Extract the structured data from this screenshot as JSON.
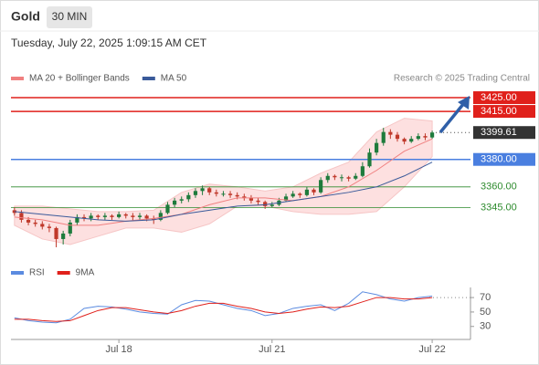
{
  "header": {
    "instrument": "Gold",
    "timeframe": "30 MIN",
    "timestamp": "Tuesday, July 22, 2025 1:09:15 AM CET",
    "credit": "Research © 2025 Trading Central"
  },
  "chart_data": [
    {
      "type": "candlestick",
      "xlim": [
        -0.5,
        65.5
      ],
      "ylim": [
        3310,
        3433
      ],
      "up_color": "#1e7b3c",
      "down_color": "#c0392b",
      "candles": [
        [
          3343,
          3345,
          3339,
          3341
        ],
        [
          3341,
          3343,
          3334,
          3336
        ],
        [
          3336,
          3338,
          3332,
          3334
        ],
        [
          3334,
          3336,
          3331,
          3333
        ],
        [
          3333,
          3335,
          3329,
          3331
        ],
        [
          3331,
          3333,
          3327,
          3330
        ],
        [
          3330,
          3331,
          3316,
          3322
        ],
        [
          3322,
          3328,
          3318,
          3326
        ],
        [
          3326,
          3336,
          3324,
          3334
        ],
        [
          3334,
          3340,
          3332,
          3338
        ],
        [
          3338,
          3340,
          3335,
          3337
        ],
        [
          3337,
          3341,
          3335,
          3339
        ],
        [
          3339,
          3340,
          3336,
          3338
        ],
        [
          3338,
          3341,
          3336,
          3339
        ],
        [
          3339,
          3340,
          3336,
          3338
        ],
        [
          3338,
          3342,
          3337,
          3340
        ],
        [
          3340,
          3341,
          3337,
          3339
        ],
        [
          3339,
          3341,
          3335,
          3338
        ],
        [
          3338,
          3341,
          3336,
          3339
        ],
        [
          3339,
          3340,
          3335,
          3337
        ],
        [
          3337,
          3339,
          3333,
          3336
        ],
        [
          3336,
          3343,
          3335,
          3341
        ],
        [
          3341,
          3349,
          3340,
          3347
        ],
        [
          3347,
          3352,
          3345,
          3350
        ],
        [
          3350,
          3353,
          3348,
          3351
        ],
        [
          3351,
          3356,
          3349,
          3354
        ],
        [
          3354,
          3359,
          3352,
          3357
        ],
        [
          3357,
          3361,
          3354,
          3359
        ],
        [
          3359,
          3360,
          3354,
          3356
        ],
        [
          3356,
          3358,
          3353,
          3355
        ],
        [
          3355,
          3357,
          3353,
          3355
        ],
        [
          3355,
          3357,
          3352,
          3354
        ],
        [
          3354,
          3356,
          3351,
          3353
        ],
        [
          3353,
          3355,
          3350,
          3352
        ],
        [
          3352,
          3354,
          3348,
          3350
        ],
        [
          3350,
          3352,
          3347,
          3349
        ],
        [
          3349,
          3350,
          3344,
          3346
        ],
        [
          3346,
          3349,
          3345,
          3347
        ],
        [
          3347,
          3352,
          3346,
          3350
        ],
        [
          3350,
          3355,
          3349,
          3353
        ],
        [
          3353,
          3357,
          3352,
          3355
        ],
        [
          3355,
          3356,
          3352,
          3354
        ],
        [
          3354,
          3360,
          3353,
          3358
        ],
        [
          3358,
          3359,
          3354,
          3356
        ],
        [
          3356,
          3367,
          3355,
          3365
        ],
        [
          3365,
          3370,
          3363,
          3368
        ],
        [
          3368,
          3369,
          3365,
          3367
        ],
        [
          3367,
          3369,
          3364,
          3367
        ],
        [
          3367,
          3368,
          3364,
          3366
        ],
        [
          3366,
          3370,
          3365,
          3368
        ],
        [
          3368,
          3378,
          3367,
          3375
        ],
        [
          3375,
          3388,
          3374,
          3385
        ],
        [
          3385,
          3395,
          3383,
          3392
        ],
        [
          3392,
          3403,
          3390,
          3400
        ],
        [
          3400,
          3402,
          3395,
          3398
        ],
        [
          3398,
          3400,
          3393,
          3395
        ],
        [
          3395,
          3396,
          3391,
          3393
        ],
        [
          3393,
          3397,
          3392,
          3395
        ],
        [
          3395,
          3399,
          3394,
          3397
        ],
        [
          3397,
          3399,
          3394,
          3396
        ],
        [
          3396,
          3401,
          3395,
          3399.61
        ]
      ],
      "series": [
        {
          "name": "MA 20 + Bollinger Bands",
          "color": "#f08080",
          "band_color": "#fde0e0",
          "x": [
            0,
            4,
            8,
            12,
            16,
            20,
            24,
            28,
            32,
            36,
            40,
            44,
            48,
            52,
            56,
            60
          ],
          "values": [
            3338,
            3336,
            3332,
            3332,
            3335,
            3337,
            3340,
            3347,
            3352,
            3352,
            3350,
            3353,
            3360,
            3372,
            3386,
            3395
          ],
          "upper": [
            3346,
            3346,
            3344,
            3342,
            3342,
            3343,
            3356,
            3362,
            3360,
            3357,
            3360,
            3370,
            3378,
            3400,
            3410,
            3408
          ],
          "lower": [
            3332,
            3322,
            3318,
            3324,
            3330,
            3330,
            3327,
            3333,
            3346,
            3346,
            3342,
            3340,
            3340,
            3342,
            3360,
            3382
          ]
        },
        {
          "name": "MA 50",
          "color": "#3a5a9a",
          "x": [
            0,
            4,
            8,
            12,
            16,
            20,
            24,
            28,
            32,
            36,
            40,
            44,
            48,
            52,
            56,
            60
          ],
          "values": [
            3342,
            3340,
            3338,
            3336,
            3335,
            3336,
            3340,
            3343,
            3346,
            3347,
            3350,
            3353,
            3356,
            3360,
            3368,
            3378
          ]
        }
      ],
      "levels": [
        {
          "value": 3425,
          "label": "3425.00",
          "color": "#e0201b",
          "boxed": true
        },
        {
          "value": 3415,
          "label": "3415.00",
          "color": "#e0201b",
          "boxed": true
        },
        {
          "value": 3380,
          "label": "3380.00",
          "color": "#4a7fe0",
          "boxed": true
        },
        {
          "value": 3360,
          "label": "3360.00",
          "color": "#2e8b2e",
          "boxed": false
        },
        {
          "value": 3345,
          "label": "3345.00",
          "color": "#2e8b2e",
          "boxed": false
        }
      ]
    },
    {
      "type": "line",
      "xlim": [
        -0.5,
        65.5
      ],
      "ylim": [
        12,
        84
      ],
      "yticks": [
        70,
        50,
        30
      ],
      "xticks": [
        {
          "value": 15,
          "label": "Jul 18"
        },
        {
          "value": 37,
          "label": "Jul 21"
        },
        {
          "value": 60,
          "label": "Jul 22"
        }
      ],
      "series": [
        {
          "name": "RSI",
          "color": "#5b8be0",
          "x": [
            0,
            2,
            4,
            6,
            8,
            10,
            12,
            14,
            16,
            18,
            20,
            22,
            24,
            26,
            28,
            30,
            32,
            34,
            36,
            38,
            40,
            42,
            44,
            46,
            48,
            50,
            52,
            54,
            56,
            58,
            60
          ],
          "values": [
            42,
            38,
            36,
            35,
            40,
            55,
            58,
            57,
            54,
            50,
            48,
            47,
            60,
            66,
            65,
            60,
            55,
            52,
            45,
            48,
            55,
            58,
            60,
            52,
            62,
            78,
            74,
            68,
            65,
            70,
            72
          ]
        },
        {
          "name": "9MA",
          "color": "#e0201b",
          "x": [
            0,
            2,
            4,
            6,
            8,
            10,
            12,
            14,
            16,
            18,
            20,
            22,
            24,
            26,
            28,
            30,
            32,
            34,
            36,
            38,
            40,
            42,
            44,
            46,
            48,
            50,
            52,
            54,
            56,
            58,
            60
          ],
          "values": [
            40,
            40,
            38,
            37,
            38,
            45,
            52,
            56,
            56,
            53,
            50,
            48,
            52,
            58,
            62,
            62,
            58,
            55,
            50,
            48,
            50,
            54,
            57,
            56,
            58,
            64,
            70,
            70,
            68,
            68,
            70
          ]
        }
      ]
    }
  ]
}
